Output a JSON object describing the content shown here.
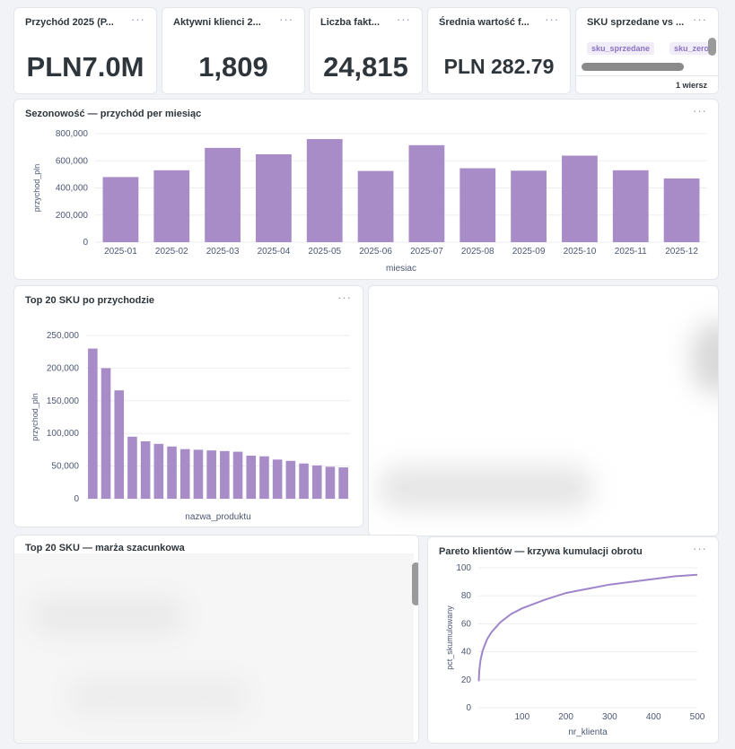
{
  "colors": {
    "bar": "#a88cc8",
    "line": "#9f85c9",
    "accent": "#7e64b8"
  },
  "kpis": [
    {
      "title": "Przychód 2025 (P...",
      "value": "PLN7.0M"
    },
    {
      "title": "Aktywni klienci 2...",
      "value": "1,809"
    },
    {
      "title": "Liczba fakt...",
      "value": "24,815"
    },
    {
      "title": "Średnia wartość f...",
      "value": "PLN 282.79"
    }
  ],
  "sku_card": {
    "title": "SKU sprzedane vs ...",
    "columns": [
      "sku_sprzedane",
      "sku_zero"
    ],
    "footer": "1 wiersz"
  },
  "menu_glyph": "···",
  "chart_data": [
    {
      "type": "bar",
      "title": "Sezonowość — przychód per miesiąc",
      "xlabel": "miesiac",
      "ylabel": "przychod_pln",
      "ylim": [
        0,
        800000
      ],
      "yticks": [
        "800,000",
        "600,000",
        "400,000",
        "200,000",
        "0"
      ],
      "categories": [
        "2025-01",
        "2025-02",
        "2025-03",
        "2025-04",
        "2025-05",
        "2025-06",
        "2025-07",
        "2025-08",
        "2025-09",
        "2025-10",
        "2025-11",
        "2025-12"
      ],
      "values": [
        480000,
        530000,
        695000,
        648000,
        760000,
        525000,
        715000,
        545000,
        527000,
        638000,
        530000,
        470000
      ],
      "grid": true
    },
    {
      "type": "bar",
      "title": "Top 20 SKU po przychodzie",
      "xlabel": "nazwa_produktu",
      "ylabel": "przychod_pln",
      "ylim": [
        0,
        250000
      ],
      "yticks": [
        "250,000",
        "200,000",
        "150,000",
        "100,000",
        "50,000",
        "0"
      ],
      "values": [
        230000,
        200000,
        166000,
        95000,
        88000,
        84000,
        80000,
        76000,
        75000,
        74000,
        73000,
        72000,
        66000,
        65000,
        60000,
        58000,
        54000,
        51000,
        49000,
        48000
      ],
      "grid": true
    },
    {
      "type": "line",
      "title": "Pareto klientów — krzywa kumulacji obrotu",
      "xlabel": "nr_klienta",
      "ylabel": "pct_skumulowany",
      "xlim": [
        0,
        500
      ],
      "ylim": [
        0,
        100
      ],
      "xticks": [
        "100",
        "200",
        "300",
        "400",
        "500"
      ],
      "yticks": [
        "100",
        "80",
        "60",
        "40",
        "20",
        "0"
      ],
      "x": [
        1,
        2,
        5,
        10,
        20,
        30,
        50,
        75,
        100,
        150,
        200,
        250,
        300,
        350,
        400,
        450,
        500
      ],
      "y": [
        19,
        26,
        34,
        41,
        49,
        54,
        61,
        67,
        71,
        77,
        82,
        85,
        88,
        90,
        92,
        94,
        95
      ],
      "grid": true
    }
  ],
  "margin_card": {
    "title": "Top 20 SKU — marża szacunkowa"
  }
}
